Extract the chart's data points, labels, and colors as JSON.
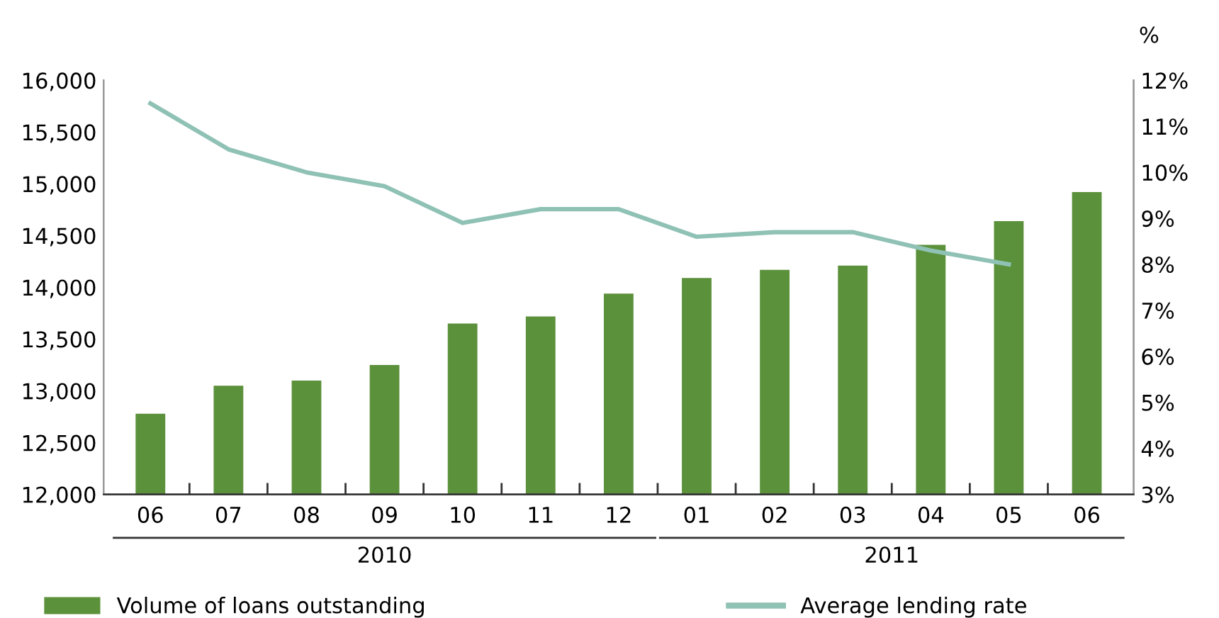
{
  "chart_data": {
    "type": "bar",
    "categories": [
      "06",
      "07",
      "08",
      "09",
      "10",
      "11",
      "12",
      "01",
      "02",
      "03",
      "04",
      "05",
      "06"
    ],
    "series": [
      {
        "name": "Volume of loans outstanding",
        "color": "#5b913b",
        "values": [
          12780,
          13050,
          13100,
          13250,
          13650,
          13720,
          13940,
          14090,
          14170,
          14210,
          14410,
          14640,
          14920
        ]
      },
      {
        "name": "Average lending rate",
        "type": "line",
        "axis": "y2",
        "color": "#8fc1b5",
        "values": [
          11.5,
          10.5,
          10.0,
          9.7,
          8.9,
          9.2,
          9.2,
          8.6,
          8.7,
          8.7,
          8.3,
          8.0,
          null
        ]
      }
    ],
    "ylim": [
      12000,
      16000
    ],
    "yticks": [
      {
        "value": 12000,
        "label": "12,000"
      },
      {
        "value": 12500,
        "label": "12,500"
      },
      {
        "value": 13000,
        "label": "13,000"
      },
      {
        "value": 13500,
        "label": "13,500"
      },
      {
        "value": 14000,
        "label": "14,000"
      },
      {
        "value": 14500,
        "label": "14,500"
      },
      {
        "value": 15000,
        "label": "15,000"
      },
      {
        "value": 15500,
        "label": "15,500"
      },
      {
        "value": 16000,
        "label": "16,000"
      }
    ],
    "y2lim": [
      3,
      12
    ],
    "y2ticks": [
      {
        "value": 3,
        "label": "3%"
      },
      {
        "value": 4,
        "label": "4%"
      },
      {
        "value": 5,
        "label": "5%"
      },
      {
        "value": 6,
        "label": "6%"
      },
      {
        "value": 7,
        "label": "7%"
      },
      {
        "value": 8,
        "label": "8%"
      },
      {
        "value": 9,
        "label": "9%"
      },
      {
        "value": 10,
        "label": "10%"
      },
      {
        "value": 11,
        "label": "11%"
      },
      {
        "value": 12,
        "label": "12%"
      }
    ],
    "y2label": "%",
    "annotations": [
      "2010",
      "2011"
    ],
    "grid": false,
    "legend": "bottom",
    "line_style": "solid",
    "marker": "none"
  }
}
